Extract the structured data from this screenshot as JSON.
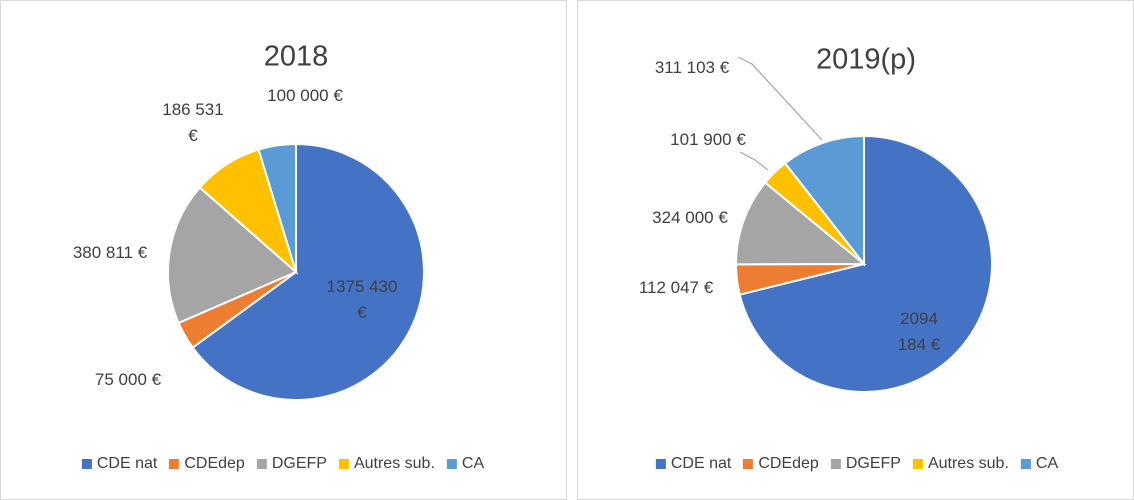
{
  "chart_data": [
    {
      "type": "pie",
      "title": "2018",
      "categories": [
        "CDE nat",
        "CDEdep",
        "DGEFP",
        "Autres sub.",
        "CA"
      ],
      "values": [
        1375430,
        75000,
        380811,
        186531,
        100000
      ],
      "value_labels": [
        "1375 430 €",
        "75 000 €",
        "380 811 €",
        "186 531 €",
        "100 000 €"
      ],
      "colors": [
        "#4472c4",
        "#ed7d31",
        "#a5a5a5",
        "#ffc000",
        "#5b9bd5"
      ]
    },
    {
      "type": "pie",
      "title": "2019(p)",
      "categories": [
        "CDE nat",
        "CDEdep",
        "DGEFP",
        "Autres sub.",
        "CA"
      ],
      "values": [
        2094184,
        112047,
        324000,
        101900,
        311103
      ],
      "value_labels": [
        "2094 184 €",
        "112 047 €",
        "324 000 €",
        "101 900 €",
        "311 103 €"
      ],
      "colors": [
        "#4472c4",
        "#ed7d31",
        "#a5a5a5",
        "#ffc000",
        "#5b9bd5"
      ]
    }
  ]
}
